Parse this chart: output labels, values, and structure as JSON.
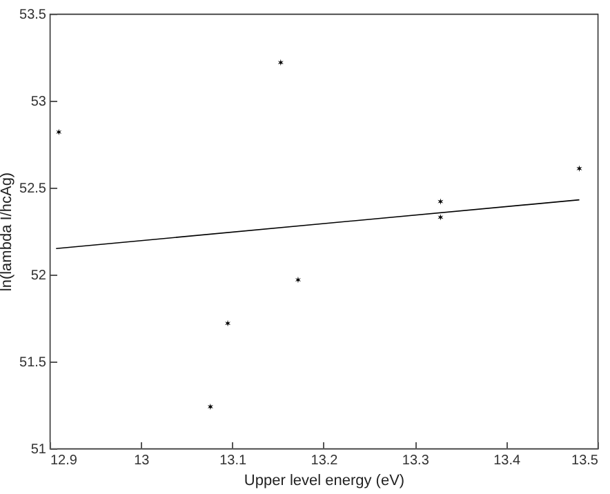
{
  "chart_data": {
    "type": "scatter",
    "xlabel": "Upper level energy (eV)",
    "ylabel": "ln(lambda I/hcAg)",
    "xlim": [
      12.9,
      13.5
    ],
    "xticks": [
      12.9,
      13,
      13.1,
      13.2,
      13.3,
      13.4,
      13.5
    ],
    "ylim": [
      51,
      53.5
    ],
    "yticks": [
      51,
      51.5,
      52,
      52.5,
      53,
      53.5
    ],
    "grid": false,
    "series": [
      {
        "color": "#000000",
        "marker": "cross",
        "x": [
          12.91,
          13.153,
          13.328,
          13.328,
          13.48,
          13.076,
          13.095,
          13.172
        ],
        "values": [
          52.82,
          53.22,
          52.42,
          52.33,
          52.61,
          51.24,
          51.72,
          51.97
        ]
      },
      {
        "type": "line",
        "color": "#000000",
        "line_style": "solid",
        "x": [
          12.907,
          13.48
        ],
        "values": [
          52.15,
          52.43
        ]
      }
    ]
  }
}
